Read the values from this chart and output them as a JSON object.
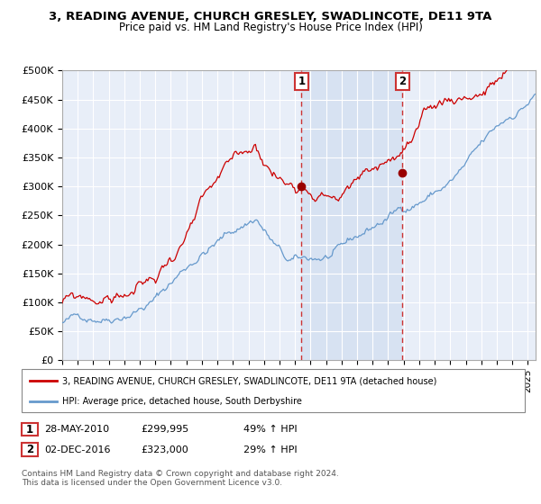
{
  "title1": "3, READING AVENUE, CHURCH GRESLEY, SWADLINCOTE, DE11 9TA",
  "title2": "Price paid vs. HM Land Registry's House Price Index (HPI)",
  "ylabel_ticks": [
    "£0",
    "£50K",
    "£100K",
    "£150K",
    "£200K",
    "£250K",
    "£300K",
    "£350K",
    "£400K",
    "£450K",
    "£500K"
  ],
  "ytick_values": [
    0,
    50000,
    100000,
    150000,
    200000,
    250000,
    300000,
    350000,
    400000,
    450000,
    500000
  ],
  "xlim_start": 1995.0,
  "xlim_end": 2025.5,
  "ylim_min": 0,
  "ylim_max": 500000,
  "purchase1_date": 2010.41,
  "purchase1_price": 299995,
  "purchase1_label": "28-MAY-2010",
  "purchase1_amount": "£299,995",
  "purchase1_hpi": "49% ↑ HPI",
  "purchase2_date": 2016.92,
  "purchase2_price": 323000,
  "purchase2_label": "02-DEC-2016",
  "purchase2_amount": "£323,000",
  "purchase2_hpi": "29% ↑ HPI",
  "legend_line1": "3, READING AVENUE, CHURCH GRESLEY, SWADLINCOTE, DE11 9TA (detached house)",
  "legend_line2": "HPI: Average price, detached house, South Derbyshire",
  "footer": "Contains HM Land Registry data © Crown copyright and database right 2024.\nThis data is licensed under the Open Government Licence v3.0.",
  "line_color_red": "#cc0000",
  "line_color_blue": "#6699cc",
  "bg_color": "#e8eef8",
  "shade_color": "#d0ddf0",
  "grid_color": "#cccccc",
  "box_color": "#cc3333"
}
